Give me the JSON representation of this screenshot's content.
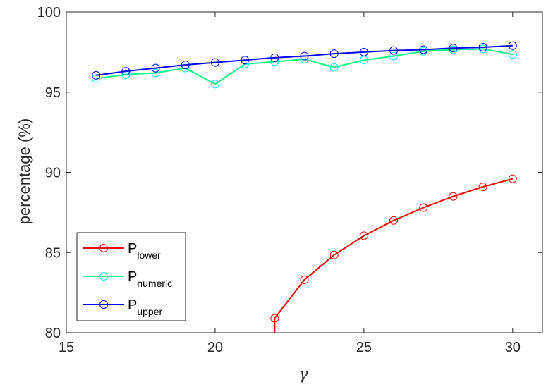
{
  "chart_data": {
    "type": "line",
    "xlabel": "γ",
    "ylabel": "percentage (%)",
    "xlim": [
      15,
      31
    ],
    "ylim": [
      80,
      100
    ],
    "xticks": [
      "15",
      "20",
      "25",
      "30"
    ],
    "yticks": [
      "80",
      "85",
      "90",
      "95",
      "100"
    ],
    "grid": false,
    "legend_position": "bottom-left",
    "series": [
      {
        "name": "lower",
        "label_main": "P",
        "label_sub": "lower",
        "line_color": "#ff0000",
        "marker_color": "#ff0000",
        "x": [
          22,
          22,
          23,
          24,
          25,
          26,
          27,
          28,
          29,
          30
        ],
        "y": [
          80.0,
          80.9,
          83.3,
          84.85,
          86.05,
          87.0,
          87.8,
          88.5,
          89.1,
          89.6
        ],
        "marker_mask": [
          false,
          true,
          true,
          true,
          true,
          true,
          true,
          true,
          true,
          true
        ]
      },
      {
        "name": "numeric",
        "label_main": "P",
        "label_sub": "numeric",
        "line_color": "#00ff80",
        "marker_color": "#00ffff",
        "x": [
          16,
          17,
          18,
          19,
          20,
          21,
          22,
          23,
          24,
          25,
          26,
          27,
          28,
          29,
          30
        ],
        "y": [
          95.85,
          96.1,
          96.2,
          96.5,
          95.5,
          96.75,
          96.9,
          97.05,
          96.55,
          97.0,
          97.25,
          97.55,
          97.65,
          97.7,
          97.35
        ],
        "marker_mask": [
          true,
          true,
          true,
          true,
          true,
          true,
          true,
          true,
          true,
          true,
          true,
          true,
          true,
          true,
          true
        ]
      },
      {
        "name": "upper",
        "label_main": "P",
        "label_sub": "upper",
        "line_color": "#0000ff",
        "marker_color": "#0000ff",
        "x": [
          16,
          17,
          18,
          19,
          20,
          21,
          22,
          23,
          24,
          25,
          26,
          27,
          28,
          29,
          30
        ],
        "y": [
          96.05,
          96.3,
          96.5,
          96.7,
          96.85,
          97.0,
          97.15,
          97.25,
          97.4,
          97.5,
          97.6,
          97.65,
          97.75,
          97.8,
          97.9
        ],
        "marker_mask": [
          true,
          true,
          true,
          true,
          true,
          true,
          true,
          true,
          true,
          true,
          true,
          true,
          true,
          true,
          true
        ]
      }
    ]
  }
}
